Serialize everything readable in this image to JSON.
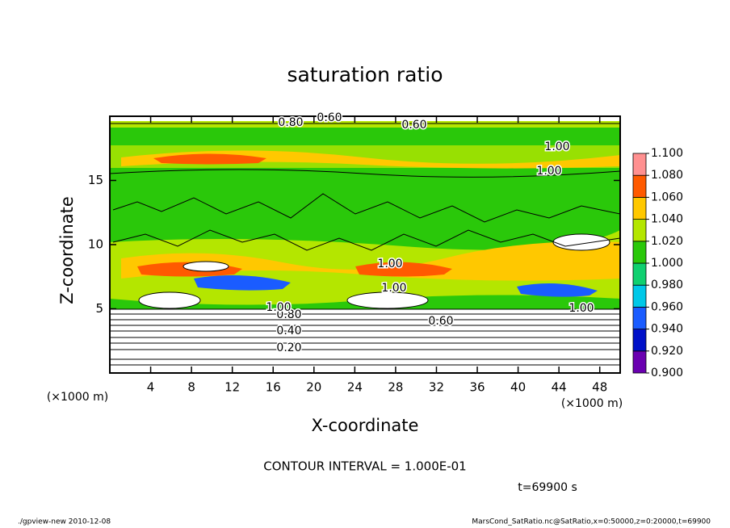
{
  "chart_data": {
    "type": "contour",
    "title": "saturation ratio",
    "x_label": "X-coordinate",
    "y_label": "Z-coordinate",
    "x_unit": "(×1000 m)",
    "y_unit": "(×1000 m)",
    "xlim": [
      0,
      50
    ],
    "xticks": [
      4,
      8,
      12,
      16,
      20,
      24,
      28,
      32,
      36,
      40,
      44,
      48
    ],
    "ylim": [
      0,
      20
    ],
    "yticks": [
      5,
      10,
      15
    ],
    "colorbar": {
      "levels": [
        {
          "value": 0.9,
          "label": "0.900"
        },
        {
          "value": 0.92,
          "label": "0.920"
        },
        {
          "value": 0.94,
          "label": "0.940"
        },
        {
          "value": 0.96,
          "label": "0.960"
        },
        {
          "value": 0.98,
          "label": "0.980"
        },
        {
          "value": 1.0,
          "label": "1.000"
        },
        {
          "value": 1.02,
          "label": "1.020"
        },
        {
          "value": 1.04,
          "label": "1.040"
        },
        {
          "value": 1.06,
          "label": "1.060"
        },
        {
          "value": 1.08,
          "label": "1.080"
        },
        {
          "value": 1.1,
          "label": "1.100"
        }
      ],
      "colors": [
        "#6a00b0",
        "#0010c8",
        "#1a5cff",
        "#00c8e8",
        "#10d070",
        "#2ac80a",
        "#b4e600",
        "#ffc800",
        "#ff5a00",
        "#ff9090"
      ]
    },
    "contour_labels": [
      "0.20",
      "0.40",
      "0.60",
      "0.80",
      "1.00",
      "0.60",
      "1.00",
      "1.00",
      "1.00",
      "1.00",
      "1.00",
      "0.80",
      "0.60"
    ],
    "contour_interval": "CONTOUR INTERVAL = 1.000E-01",
    "time": "t=69900 s",
    "footer_left": "./gpview-new  2010-12-08",
    "footer_right": "MarsCond_SatRatio.nc@SatRatio,x=0:50000,z=0:20000,t=69900"
  }
}
